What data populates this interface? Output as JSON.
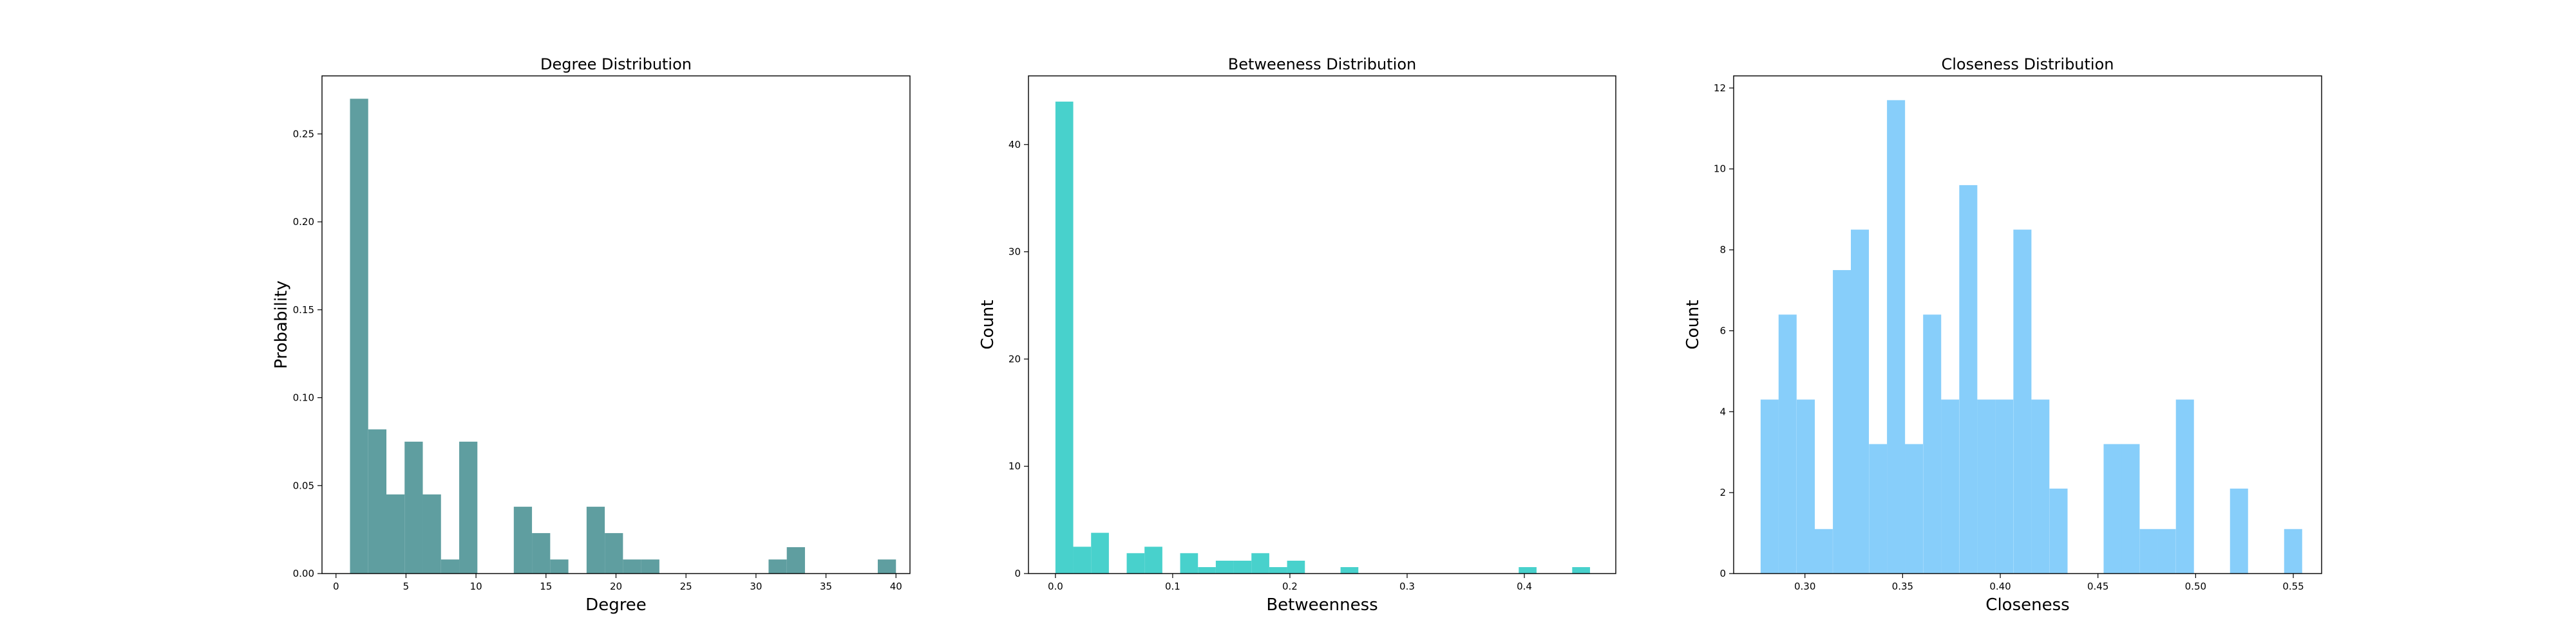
{
  "chart_data": [
    {
      "type": "bar",
      "title": "Degree Distribution",
      "xlabel": "Degree",
      "ylabel": "Probability",
      "xlim": [
        -1,
        41
      ],
      "ylim": [
        0,
        0.283
      ],
      "grid": false,
      "color": "#5f9ea0",
      "bin_width": 1.3,
      "bins": [
        {
          "x": 1.0,
          "value": 0.27
        },
        {
          "x": 2.3,
          "value": 0.082
        },
        {
          "x": 3.6,
          "value": 0.045
        },
        {
          "x": 4.9,
          "value": 0.075
        },
        {
          "x": 6.2,
          "value": 0.045
        },
        {
          "x": 7.5,
          "value": 0.008
        },
        {
          "x": 8.8,
          "value": 0.075
        },
        {
          "x": 12.7,
          "value": 0.038
        },
        {
          "x": 14.0,
          "value": 0.023
        },
        {
          "x": 15.3,
          "value": 0.008
        },
        {
          "x": 17.9,
          "value": 0.038
        },
        {
          "x": 19.2,
          "value": 0.023
        },
        {
          "x": 20.5,
          "value": 0.008
        },
        {
          "x": 21.8,
          "value": 0.008
        },
        {
          "x": 30.9,
          "value": 0.008
        },
        {
          "x": 32.2,
          "value": 0.015
        },
        {
          "x": 38.7,
          "value": 0.008
        }
      ],
      "xticks": [
        0,
        5,
        10,
        15,
        20,
        25,
        30,
        35,
        40
      ],
      "xtick_labels": [
        "0",
        "5",
        "10",
        "15",
        "20",
        "25",
        "30",
        "35",
        "40"
      ],
      "yticks": [
        0,
        0.05,
        0.1,
        0.15,
        0.2,
        0.25
      ],
      "ytick_labels": [
        "0.00",
        "0.05",
        "0.10",
        "0.15",
        "0.20",
        "0.25"
      ]
    },
    {
      "type": "bar",
      "title": "Betweeness Distribution",
      "xlabel": "Betweenness",
      "ylabel": "Count",
      "xlim": [
        -0.023,
        0.478
      ],
      "ylim": [
        0,
        46.4
      ],
      "grid": false,
      "color": "#48d1cc",
      "bin_width": 0.0152,
      "bins": [
        {
          "x": 0.0,
          "value": 44
        },
        {
          "x": 0.0152,
          "value": 2.5
        },
        {
          "x": 0.0304,
          "value": 3.8
        },
        {
          "x": 0.0608,
          "value": 1.9
        },
        {
          "x": 0.076,
          "value": 2.5
        },
        {
          "x": 0.1064,
          "value": 1.9
        },
        {
          "x": 0.1216,
          "value": 0.6
        },
        {
          "x": 0.1368,
          "value": 1.2
        },
        {
          "x": 0.152,
          "value": 1.2
        },
        {
          "x": 0.1672,
          "value": 1.9
        },
        {
          "x": 0.1824,
          "value": 0.6
        },
        {
          "x": 0.1976,
          "value": 1.2
        },
        {
          "x": 0.2432,
          "value": 0.6
        },
        {
          "x": 0.3952,
          "value": 0.6
        },
        {
          "x": 0.4408,
          "value": 0.6
        }
      ],
      "xticks": [
        0.0,
        0.1,
        0.2,
        0.3,
        0.4
      ],
      "xtick_labels": [
        "0.0",
        "0.1",
        "0.2",
        "0.3",
        "0.4"
      ],
      "yticks": [
        0,
        10,
        20,
        30,
        40
      ],
      "ytick_labels": [
        "0",
        "10",
        "20",
        "30",
        "40"
      ]
    },
    {
      "type": "bar",
      "title": "Closeness Distribution",
      "xlabel": "Closeness",
      "ylabel": "Count",
      "xlim": [
        0.2635,
        0.5645
      ],
      "ylim": [
        0,
        12.3
      ],
      "grid": false,
      "color": "#87cefa",
      "bin_width": 0.00924,
      "bins": [
        {
          "x": 0.2773,
          "value": 4.3
        },
        {
          "x": 0.2865,
          "value": 6.4
        },
        {
          "x": 0.2958,
          "value": 4.3
        },
        {
          "x": 0.305,
          "value": 1.1
        },
        {
          "x": 0.3143,
          "value": 7.5
        },
        {
          "x": 0.3235,
          "value": 8.5
        },
        {
          "x": 0.3328,
          "value": 3.2
        },
        {
          "x": 0.342,
          "value": 11.7
        },
        {
          "x": 0.3512,
          "value": 3.2
        },
        {
          "x": 0.3605,
          "value": 6.4
        },
        {
          "x": 0.3697,
          "value": 4.3
        },
        {
          "x": 0.379,
          "value": 9.6
        },
        {
          "x": 0.3882,
          "value": 4.3
        },
        {
          "x": 0.3974,
          "value": 4.3
        },
        {
          "x": 0.4067,
          "value": 8.5
        },
        {
          "x": 0.4159,
          "value": 4.3
        },
        {
          "x": 0.4252,
          "value": 2.1
        },
        {
          "x": 0.4529,
          "value": 3.2
        },
        {
          "x": 0.4621,
          "value": 3.2
        },
        {
          "x": 0.4714,
          "value": 1.1
        },
        {
          "x": 0.4806,
          "value": 1.1
        },
        {
          "x": 0.4899,
          "value": 4.3
        },
        {
          "x": 0.5176,
          "value": 2.1
        },
        {
          "x": 0.5453,
          "value": 1.1
        }
      ],
      "xticks": [
        0.3,
        0.35,
        0.4,
        0.45,
        0.5,
        0.55
      ],
      "xtick_labels": [
        "0.30",
        "0.35",
        "0.40",
        "0.45",
        "0.50",
        "0.55"
      ],
      "yticks": [
        0,
        2,
        4,
        6,
        8,
        10,
        12
      ],
      "ytick_labels": [
        "0",
        "2",
        "4",
        "6",
        "8",
        "10",
        "12"
      ]
    }
  ]
}
